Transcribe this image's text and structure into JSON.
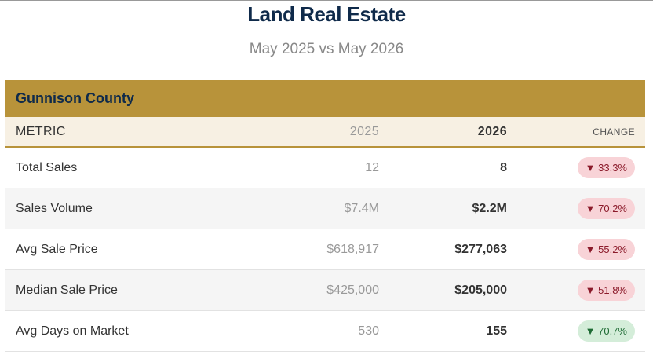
{
  "header": {
    "title": "Land Real Estate",
    "subtitle": "May 2025 vs May 2026"
  },
  "table": {
    "region": "Gunnison County",
    "columns": [
      "METRIC",
      "2025",
      "2026",
      "CHANGE"
    ],
    "rows": [
      {
        "metric": "Total Sales",
        "prior": "12",
        "current": "8",
        "change": "▼ 33.3%",
        "change_color": "#f8d3d7",
        "change_text_color": "#8b1a2a"
      },
      {
        "metric": "Sales Volume",
        "prior": "$7.4M",
        "current": "$2.2M",
        "change": "▼ 70.2%",
        "change_color": "#f8d3d7",
        "change_text_color": "#8b1a2a"
      },
      {
        "metric": "Avg Sale Price",
        "prior": "$618,917",
        "current": "$277,063",
        "change": "▼ 55.2%",
        "change_color": "#f8d3d7",
        "change_text_color": "#8b1a2a"
      },
      {
        "metric": "Median Sale Price",
        "prior": "$425,000",
        "current": "$205,000",
        "change": "▼ 51.8%",
        "change_color": "#f8d3d7",
        "change_text_color": "#8b1a2a"
      },
      {
        "metric": "Avg Days on Market",
        "prior": "530",
        "current": "155",
        "change": "▼ 70.7%",
        "change_color": "#d4edd9",
        "change_text_color": "#1e6b34"
      }
    ]
  }
}
